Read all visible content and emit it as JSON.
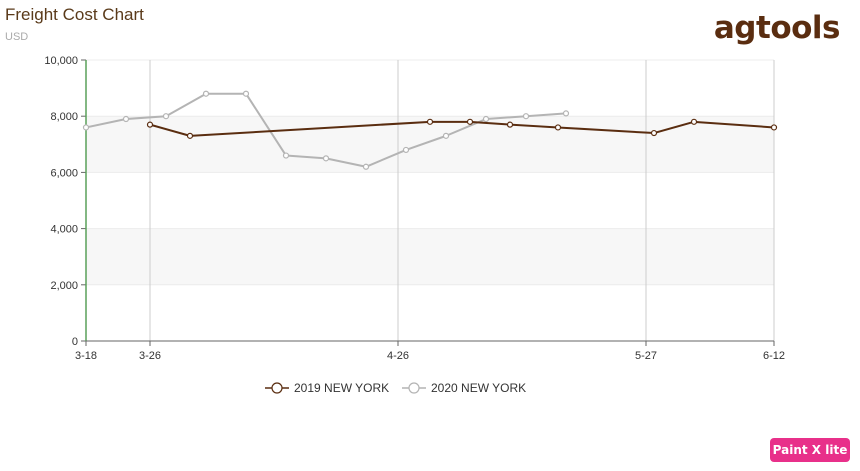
{
  "header": {
    "title": "Freight Cost Chart",
    "subtitle": "USD",
    "logo": "agtools",
    "badge": "Paint X lite"
  },
  "colors": {
    "series_2019": "#5a2d10",
    "series_2020": "#b4b4b4",
    "y_axis": "#5aa05a",
    "grid": "#cccccc",
    "band": "#f7f7f7"
  },
  "chart_data": {
    "type": "line",
    "title": "Freight Cost Chart",
    "ylabel": "USD",
    "ylim": [
      0,
      10000
    ],
    "y_ticks": [
      0,
      2000,
      4000,
      6000,
      8000,
      10000
    ],
    "y_tick_labels": [
      "0",
      "2,000",
      "4,000",
      "6,000",
      "8,000",
      "10,000"
    ],
    "xlim": [
      "3-18",
      "6-12"
    ],
    "x_ticks": [
      "3-18",
      "3-26",
      "4-26",
      "5-27",
      "6-12"
    ],
    "grid": true,
    "legend": "bottom-center",
    "series": [
      {
        "name": "2019 NEW YORK",
        "color": "#5a2d10",
        "points": [
          {
            "x": "3-26",
            "y": 7700
          },
          {
            "x": "3-31",
            "y": 7300
          },
          {
            "x": "4-30",
            "y": 7800
          },
          {
            "x": "5-5",
            "y": 7800
          },
          {
            "x": "5-10",
            "y": 7700
          },
          {
            "x": "5-16",
            "y": 7600
          },
          {
            "x": "5-28",
            "y": 7400
          },
          {
            "x": "6-2",
            "y": 7800
          },
          {
            "x": "6-12",
            "y": 7600
          }
        ]
      },
      {
        "name": "2020 NEW YORK",
        "color": "#b4b4b4",
        "points": [
          {
            "x": "3-18",
            "y": 7600
          },
          {
            "x": "3-23",
            "y": 7900
          },
          {
            "x": "3-28",
            "y": 8000
          },
          {
            "x": "4-2",
            "y": 8800
          },
          {
            "x": "4-7",
            "y": 8800
          },
          {
            "x": "4-12",
            "y": 6600
          },
          {
            "x": "4-17",
            "y": 6500
          },
          {
            "x": "4-22",
            "y": 6200
          },
          {
            "x": "4-27",
            "y": 6800
          },
          {
            "x": "5-2",
            "y": 7300
          },
          {
            "x": "5-7",
            "y": 7900
          },
          {
            "x": "5-12",
            "y": 8000
          },
          {
            "x": "5-17",
            "y": 8100
          }
        ]
      }
    ]
  }
}
